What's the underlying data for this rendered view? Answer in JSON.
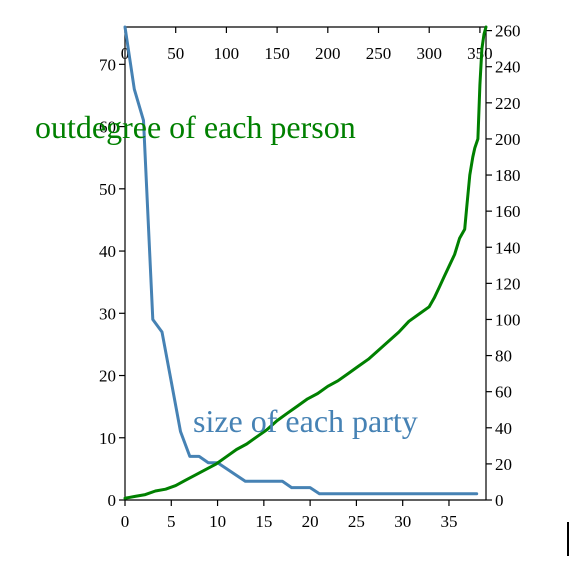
{
  "chart_data": {
    "type": "line",
    "grid": false,
    "axes": {
      "left": {
        "range": [
          0,
          76
        ],
        "ticks": [
          0,
          10,
          20,
          30,
          40,
          50,
          60,
          70
        ]
      },
      "bottom": {
        "range": [
          0,
          39
        ],
        "ticks": [
          0,
          5,
          10,
          15,
          20,
          25,
          30,
          35
        ]
      },
      "top": {
        "range": [
          0,
          356
        ],
        "ticks": [
          0,
          50,
          100,
          150,
          200,
          250,
          300,
          350
        ]
      },
      "right": {
        "range": [
          0,
          262
        ],
        "ticks": [
          0,
          20,
          40,
          60,
          80,
          100,
          120,
          140,
          160,
          180,
          200,
          220,
          240,
          260
        ]
      }
    },
    "series": [
      {
        "name": "size of each party",
        "color": "#4682b4",
        "x_axis": "bottom",
        "y_axis": "left",
        "x": [
          0,
          1,
          2,
          3,
          4,
          5,
          6,
          7,
          8,
          9,
          10,
          11,
          12,
          13,
          14,
          15,
          16,
          17,
          18,
          19,
          20,
          21,
          22,
          23,
          24,
          25,
          26,
          27,
          28,
          29,
          30,
          31,
          32,
          33,
          34,
          35,
          36,
          37,
          38
        ],
        "values": [
          76,
          66,
          61,
          29,
          27,
          19,
          11,
          7,
          7,
          6,
          6,
          5,
          4,
          3,
          3,
          3,
          3,
          3,
          2,
          2,
          2,
          1,
          1,
          1,
          1,
          1,
          1,
          1,
          1,
          1,
          1,
          1,
          1,
          1,
          1,
          1,
          1,
          1,
          1
        ]
      },
      {
        "name": "outdegree of each person",
        "color": "#008000",
        "x_axis": "top",
        "y_axis": "right",
        "x": [
          0,
          10,
          20,
          30,
          40,
          50,
          60,
          70,
          80,
          90,
          100,
          110,
          120,
          130,
          140,
          150,
          160,
          170,
          180,
          190,
          200,
          210,
          220,
          230,
          240,
          250,
          260,
          270,
          280,
          290,
          300,
          305,
          310,
          315,
          320,
          325,
          330,
          335,
          337,
          340,
          343,
          345,
          348,
          350,
          352,
          354,
          356
        ],
        "values": [
          1,
          2,
          3,
          5,
          6,
          8,
          11,
          14,
          17,
          20,
          24,
          28,
          31,
          35,
          39,
          44,
          48,
          52,
          56,
          59,
          63,
          66,
          70,
          74,
          78,
          83,
          88,
          93,
          99,
          103,
          107,
          112,
          118,
          124,
          130,
          136,
          145,
          150,
          162,
          180,
          190,
          195,
          200,
          230,
          250,
          258,
          262
        ]
      }
    ],
    "annotations": [
      {
        "text": "outdegree of each person",
        "color": "#008000"
      },
      {
        "text": "size of each party",
        "color": "#4682b4"
      }
    ]
  }
}
